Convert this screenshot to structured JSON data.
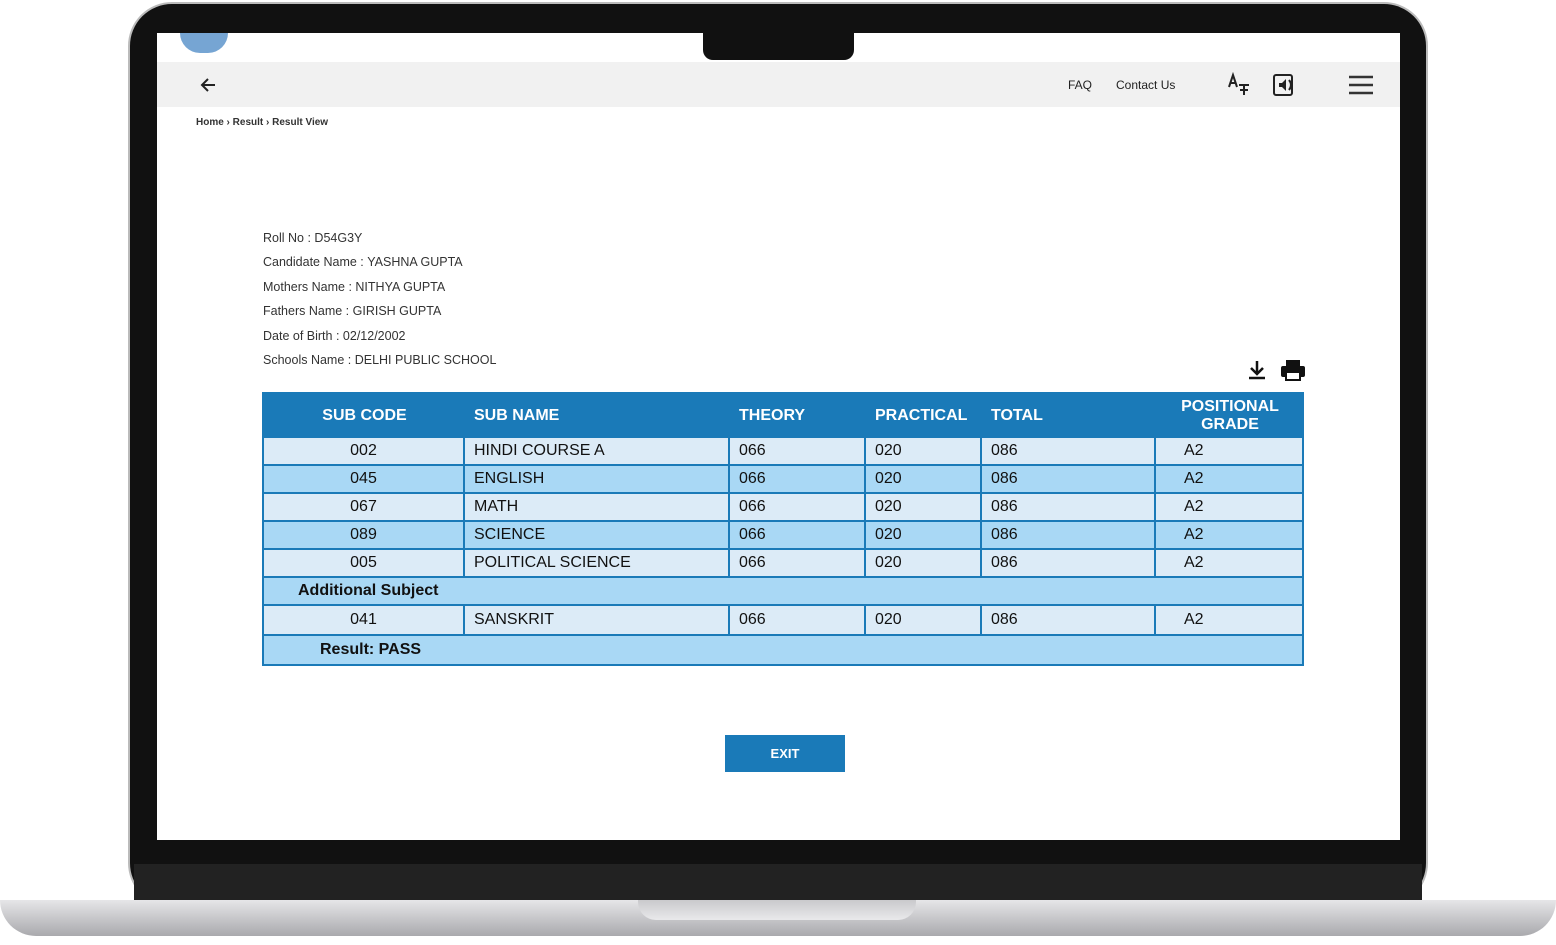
{
  "nav": {
    "links": [
      "FAQ",
      "Contact Us"
    ]
  },
  "breadcrumb": "Home › Result › Result View",
  "details": [
    {
      "label": "Roll No :",
      "value": "D54G3Y"
    },
    {
      "label": "Candidate Name :",
      "value": "YASHNA GUPTA"
    },
    {
      "label": "Mothers Name :",
      "value": "NITHYA GUPTA"
    },
    {
      "label": "Fathers Name :",
      "value": "GIRISH GUPTA"
    },
    {
      "label": "Date of Birth :",
      "value": "02/12/2002"
    },
    {
      "label": "Schools Name :",
      "value": "DELHI PUBLIC SCHOOL"
    }
  ],
  "table": {
    "headers": [
      "SUB CODE",
      "SUB NAME",
      "THEORY",
      "PRACTICAL",
      "TOTAL",
      "POSITIONAL GRADE"
    ],
    "rows": [
      [
        "002",
        "HINDI COURSE A",
        "066",
        "020",
        "086",
        "A2"
      ],
      [
        "045",
        "ENGLISH",
        "066",
        "020",
        "086",
        "A2"
      ],
      [
        "067",
        "MATH",
        "066",
        "020",
        "086",
        "A2"
      ],
      [
        "089",
        "SCIENCE",
        "066",
        "020",
        "086",
        "A2"
      ],
      [
        "005",
        "POLITICAL SCIENCE",
        "066",
        "020",
        "086",
        "A2"
      ]
    ],
    "additional_label": "Additional Subject",
    "additional_rows": [
      [
        "041",
        "SANSKRIT",
        "066",
        "020",
        "086",
        "A2"
      ]
    ],
    "result": "Result: PASS"
  },
  "exit_button": "EXIT"
}
